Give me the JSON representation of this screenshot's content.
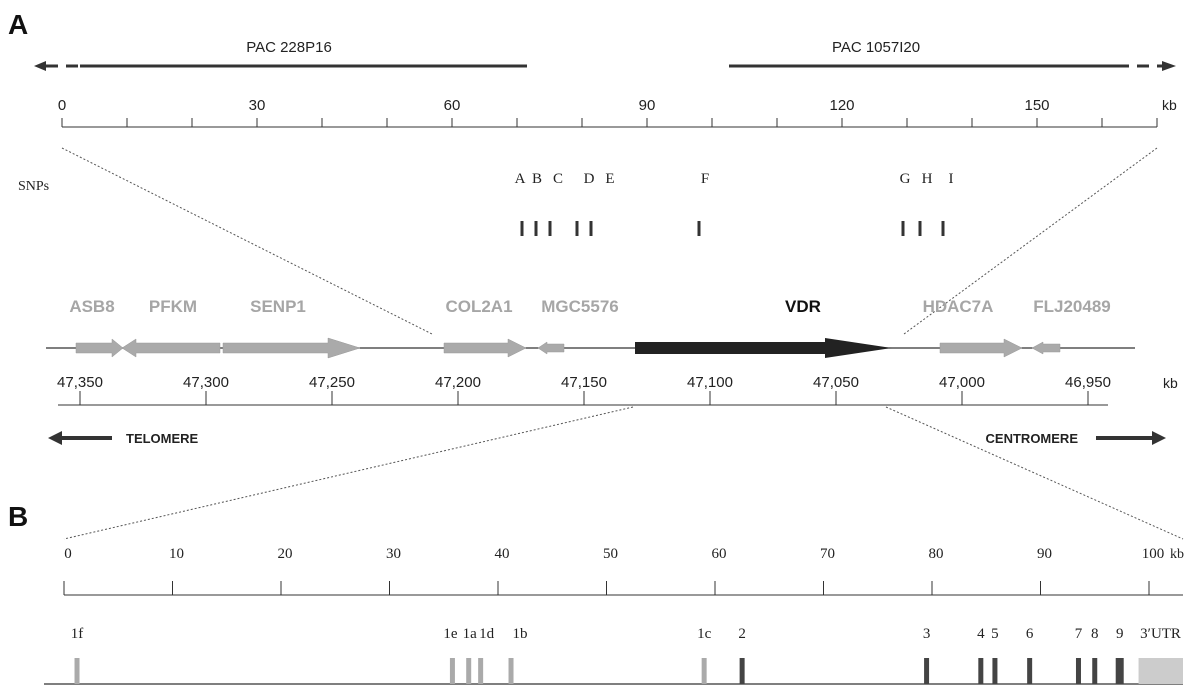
{
  "panel_a": {
    "label": "A",
    "pac_left": "PAC 228P16",
    "pac_right": "PAC 1057I20",
    "scale_ticks": [
      "0",
      "30",
      "60",
      "90",
      "120",
      "150"
    ],
    "scale_unit": "kb",
    "snp_title": "SNPs",
    "snps": [
      "A",
      "B",
      "C",
      "D",
      "E",
      "F",
      "G",
      "H",
      "I"
    ],
    "genes": [
      {
        "name": "ASB8",
        "color": "#aaaaaa"
      },
      {
        "name": "PFKM",
        "color": "#aaaaaa"
      },
      {
        "name": "SENP1",
        "color": "#aaaaaa"
      },
      {
        "name": "COL2A1",
        "color": "#aaaaaa"
      },
      {
        "name": "MGC5576",
        "color": "#aaaaaa"
      },
      {
        "name": "VDR",
        "color": "#222222"
      },
      {
        "name": "HDAC7A",
        "color": "#aaaaaa"
      },
      {
        "name": "FLJ20489",
        "color": "#aaaaaa"
      }
    ],
    "position_ticks": [
      "47,350",
      "47,300",
      "47,250",
      "47,200",
      "47,150",
      "47,100",
      "47,050",
      "47,000",
      "46,950"
    ],
    "position_unit": "kb",
    "telomere": "TELOMERE",
    "centromere": "CENTROMERE"
  },
  "panel_b": {
    "label": "B",
    "scale_ticks": [
      "0",
      "10",
      "20",
      "30",
      "40",
      "50",
      "60",
      "70",
      "80",
      "90",
      "100"
    ],
    "scale_unit": "kb",
    "exons": [
      {
        "label": "1f",
        "kb": 1.2,
        "color": "#aaaaaa"
      },
      {
        "label": "1e",
        "kb": 35.8,
        "color": "#aaaaaa"
      },
      {
        "label": "1a",
        "kb": 37.3,
        "color": "#aaaaaa"
      },
      {
        "label": "1d",
        "kb": 38.4,
        "color": "#aaaaaa"
      },
      {
        "label": "1b",
        "kb": 41.2,
        "color": "#aaaaaa"
      },
      {
        "label": "1c",
        "kb": 59.0,
        "color": "#aaaaaa"
      },
      {
        "label": "2",
        "kb": 62.5,
        "color": "#444444"
      },
      {
        "label": "3",
        "kb": 79.5,
        "color": "#444444"
      },
      {
        "label": "4",
        "kb": 84.5,
        "color": "#444444"
      },
      {
        "label": "5",
        "kb": 85.8,
        "color": "#444444"
      },
      {
        "label": "6",
        "kb": 89.0,
        "color": "#444444"
      },
      {
        "label": "7",
        "kb": 93.5,
        "color": "#444444"
      },
      {
        "label": "8",
        "kb": 95.0,
        "color": "#444444"
      },
      {
        "label": "9",
        "kb": 97.3,
        "color": "#444444"
      },
      {
        "label": "3′UTR",
        "kb": 98.3,
        "color": "#cccccc"
      }
    ]
  }
}
